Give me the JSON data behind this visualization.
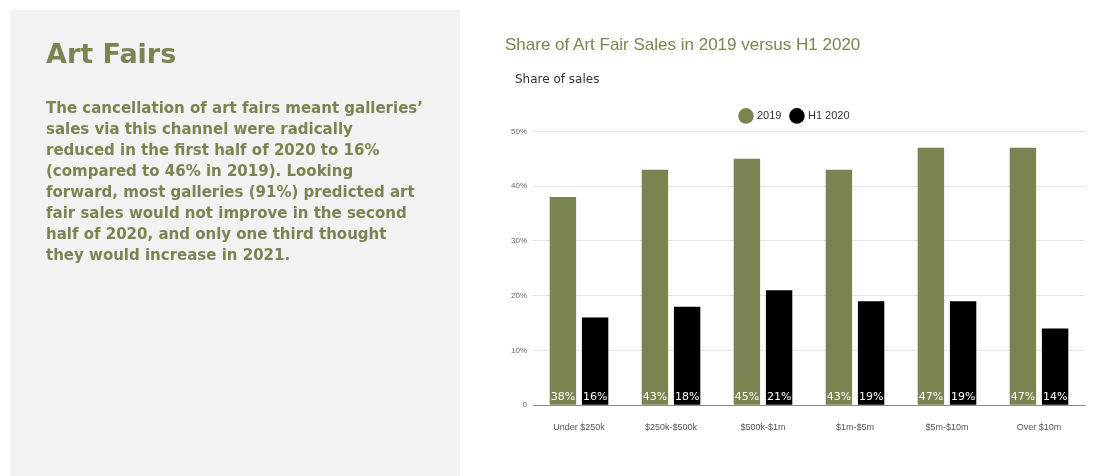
{
  "chart_data": {
    "type": "bar",
    "title": "Share of Art Fair Sales in 2019 versus H1 2020",
    "ylabel": "Share of sales",
    "annotations": [
      "Art Fairs",
      "The cancellation of art fairs meant galleries’ sales via this channel were radically reduced in the first half of 2020 to 16% (compared to 46% in 2019). Looking forward, most galleries (91%) predicted art fair sales would not improve in the second half of 2020, and only one third thought they would increase in 2021."
    ],
    "categories": [
      "Under $250k",
      "$250k-$500k",
      "$500k-$1m",
      "$1m-$5m",
      "$5m-$10m",
      "Over $10m"
    ],
    "series": [
      {
        "name": "2019",
        "color": "#7a8450",
        "values": [
          38,
          43,
          45,
          43,
          47,
          47
        ],
        "value_labels": [
          "38%",
          "43%",
          "45%",
          "43%",
          "47%",
          "47%"
        ]
      },
      {
        "name": "H1 2020",
        "color": "#000000",
        "values": [
          16,
          18,
          21,
          19,
          19,
          14
        ],
        "value_labels": [
          "16%",
          "18%",
          "21%",
          "19%",
          "19%",
          "14%"
        ]
      }
    ],
    "ylim": [
      0,
      50
    ],
    "yticks": [
      0,
      {
        "value": 10,
        "label": "10%"
      },
      {
        "value": 20,
        "label": "20%"
      },
      {
        "value": 30,
        "label": "30%"
      },
      {
        "value": 40,
        "label": "40%"
      },
      {
        "value": 50,
        "label": "50%"
      }
    ],
    "grid": "y",
    "legend": "top"
  }
}
